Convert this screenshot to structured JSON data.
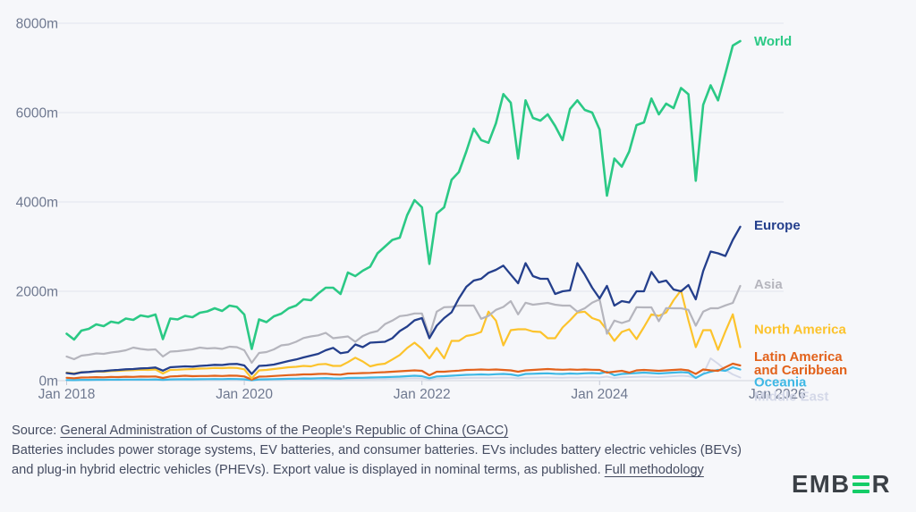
{
  "footer": {
    "source_prefix": "Source: ",
    "source_link": "General Administration of Customs of the People's Republic of China (GACC)",
    "note_text": "Batteries includes power storage systems, EV batteries, and consumer batteries. EVs includes battery electric vehicles (BEVs) and plug-in hybrid electric vehicles (PHEVs). Export value is displayed in nominal terms, as published. ",
    "methodology_link": "Full methodology"
  },
  "logo": {
    "left": "EMB",
    "right": "R",
    "brand_green": "#14cc67",
    "brand_dark": "#3b4046"
  },
  "chart_data": {
    "type": "line",
    "title": "",
    "xlabel": "",
    "ylabel": "",
    "y_tick_suffix": "m",
    "x_unit": "month",
    "x_start": "Jan 2018",
    "x_end": "Aug 2025",
    "ylim": [
      0,
      8000
    ],
    "grid": "horizontal",
    "legend_position": "right-of-line-ends",
    "yticks": [
      {
        "value": 0,
        "label": "0m"
      },
      {
        "value": 2000,
        "label": "2000m"
      },
      {
        "value": 4000,
        "label": "4000m"
      },
      {
        "value": 6000,
        "label": "6000m"
      },
      {
        "value": 8000,
        "label": "8000m"
      }
    ],
    "xticks": [
      {
        "index": 0,
        "label": "Jan 2018"
      },
      {
        "index": 24,
        "label": "Jan 2020"
      },
      {
        "index": 48,
        "label": "Jan 2022"
      },
      {
        "index": 72,
        "label": "Jan 2024"
      },
      {
        "index": 96,
        "label": "Jan 2026"
      }
    ],
    "series": [
      {
        "name": "middle-east",
        "label": [
          "Middle East"
        ],
        "color": "#d4d8e8",
        "label_dy": 21,
        "width": 2.0,
        "values": [
          8,
          7,
          9,
          9,
          10,
          10,
          11,
          11,
          12,
          12,
          13,
          13,
          14,
          10,
          14,
          15,
          16,
          15,
          16,
          17,
          18,
          17,
          19,
          18,
          16,
          6,
          15,
          16,
          18,
          20,
          22,
          23,
          26,
          25,
          28,
          29,
          26,
          25,
          30,
          31,
          33,
          35,
          37,
          39,
          42,
          45,
          48,
          52,
          48,
          28,
          46,
          48,
          52,
          56,
          60,
          62,
          65,
          63,
          66,
          68,
          64,
          52,
          66,
          68,
          70,
          72,
          68,
          66,
          70,
          68,
          72,
          74,
          70,
          90,
          60,
          75,
          80,
          85,
          90,
          85,
          80,
          90,
          100,
          110,
          100,
          60,
          150,
          500,
          380,
          240,
          140,
          70
        ]
      },
      {
        "name": "oceania",
        "label": [
          "Oceania"
        ],
        "color": "#3eb8e5",
        "label_dy": 14,
        "width": 2.2,
        "values": [
          15,
          12,
          18,
          18,
          20,
          20,
          22,
          22,
          25,
          24,
          26,
          25,
          28,
          18,
          28,
          30,
          32,
          30,
          33,
          34,
          36,
          34,
          38,
          36,
          30,
          10,
          28,
          30,
          34,
          38,
          42,
          44,
          50,
          48,
          55,
          58,
          50,
          48,
          60,
          62,
          65,
          70,
          75,
          78,
          85,
          90,
          100,
          110,
          100,
          55,
          95,
          100,
          110,
          120,
          130,
          135,
          140,
          135,
          145,
          150,
          140,
          110,
          150,
          155,
          160,
          165,
          155,
          150,
          160,
          155,
          165,
          170,
          160,
          200,
          120,
          150,
          160,
          170,
          180,
          170,
          160,
          170,
          180,
          190,
          180,
          60,
          150,
          200,
          240,
          220,
          300,
          250
        ]
      },
      {
        "name": "latin-america-and-caribbean",
        "label": [
          "Latin America",
          "and Caribbean"
        ],
        "color": "#e2621b",
        "label_dy": -10,
        "width": 2.2,
        "values": [
          65,
          55,
          70,
          72,
          78,
          75,
          82,
          80,
          88,
          85,
          92,
          90,
          95,
          60,
          95,
          100,
          110,
          100,
          105,
          105,
          110,
          105,
          112,
          110,
          95,
          25,
          90,
          95,
          105,
          115,
          125,
          130,
          140,
          140,
          150,
          155,
          140,
          135,
          160,
          165,
          170,
          175,
          185,
          190,
          200,
          210,
          220,
          230,
          220,
          120,
          200,
          200,
          215,
          225,
          240,
          245,
          250,
          245,
          250,
          240,
          230,
          200,
          230,
          240,
          250,
          260,
          250,
          245,
          250,
          245,
          250,
          245,
          240,
          180,
          200,
          220,
          180,
          230,
          240,
          230,
          220,
          230,
          240,
          250,
          230,
          150,
          250,
          230,
          220,
          300,
          380,
          340
        ]
      },
      {
        "name": "north-america",
        "label": [
          "North America"
        ],
        "color": "#fcc32c",
        "label_dy": -20,
        "width": 2.2,
        "values": [
          180,
          160,
          190,
          195,
          205,
          200,
          215,
          220,
          230,
          235,
          245,
          240,
          250,
          160,
          240,
          245,
          255,
          260,
          270,
          275,
          285,
          280,
          290,
          285,
          255,
          50,
          230,
          240,
          260,
          280,
          300,
          310,
          330,
          320,
          365,
          375,
          330,
          330,
          415,
          515,
          430,
          320,
          360,
          380,
          475,
          575,
          730,
          850,
          713,
          500,
          733,
          500,
          890,
          890,
          1000,
          1030,
          1090,
          1545,
          1345,
          790,
          1130,
          1150,
          1150,
          1100,
          1090,
          950,
          950,
          1190,
          1350,
          1525,
          1545,
          1400,
          1345,
          1130,
          890,
          1090,
          1150,
          930,
          1200,
          1485,
          1450,
          1525,
          1800,
          2020,
          1350,
          750,
          1130,
          1130,
          690,
          1100,
          1485,
          750
        ]
      },
      {
        "name": "asia",
        "label": [
          "Asia"
        ],
        "color": "#b5b5bd",
        "label_dy": -2,
        "width": 2.2,
        "values": [
          540,
          480,
          560,
          580,
          610,
          600,
          630,
          650,
          680,
          740,
          710,
          690,
          700,
          540,
          650,
          660,
          680,
          700,
          740,
          720,
          730,
          710,
          760,
          750,
          680,
          400,
          620,
          640,
          700,
          790,
          810,
          870,
          955,
          990,
          1015,
          1070,
          950,
          970,
          990,
          870,
          1000,
          1070,
          1110,
          1265,
          1345,
          1445,
          1465,
          1505,
          1505,
          1000,
          1545,
          1645,
          1650,
          1680,
          1680,
          1680,
          1385,
          1450,
          1585,
          1650,
          1780,
          1485,
          1745,
          1700,
          1720,
          1740,
          1700,
          1680,
          1680,
          1545,
          1620,
          1745,
          1820,
          1050,
          1345,
          1290,
          1345,
          1645,
          1640,
          1640,
          1330,
          1625,
          1620,
          1620,
          1585,
          1230,
          1545,
          1620,
          1620,
          1685,
          1740,
          2120
        ]
      },
      {
        "name": "europe",
        "label": [
          "Europe"
        ],
        "color": "#243f8c",
        "label_dy": -2,
        "width": 2.3,
        "values": [
          170,
          150,
          185,
          195,
          210,
          215,
          230,
          240,
          255,
          260,
          275,
          280,
          295,
          225,
          300,
          310,
          320,
          315,
          330,
          340,
          355,
          350,
          370,
          375,
          340,
          150,
          330,
          340,
          360,
          400,
          440,
          475,
          520,
          560,
          600,
          680,
          735,
          615,
          640,
          810,
          750,
          850,
          860,
          870,
          950,
          1110,
          1210,
          1350,
          1400,
          950,
          1230,
          1400,
          1530,
          1840,
          2100,
          2240,
          2280,
          2415,
          2480,
          2575,
          2375,
          2180,
          2630,
          2340,
          2280,
          2280,
          1940,
          2000,
          2020,
          2630,
          2375,
          2080,
          1840,
          2120,
          1680,
          1780,
          1750,
          2000,
          2000,
          2435,
          2200,
          2240,
          2040,
          2000,
          2140,
          1820,
          2455,
          2890,
          2850,
          2790,
          3150,
          3445
        ]
      },
      {
        "name": "world",
        "label": [
          "World"
        ],
        "color": "#2bc985",
        "label_dy": 0,
        "width": 2.6,
        "values": [
          1050,
          920,
          1120,
          1160,
          1260,
          1220,
          1320,
          1290,
          1390,
          1360,
          1460,
          1430,
          1480,
          930,
          1390,
          1370,
          1450,
          1420,
          1520,
          1550,
          1620,
          1560,
          1680,
          1650,
          1480,
          710,
          1370,
          1310,
          1440,
          1500,
          1620,
          1680,
          1820,
          1800,
          1950,
          2080,
          2080,
          1940,
          2420,
          2340,
          2460,
          2550,
          2850,
          3000,
          3150,
          3200,
          3700,
          4040,
          3880,
          2615,
          3740,
          3880,
          4495,
          4670,
          5130,
          5640,
          5385,
          5325,
          5760,
          6415,
          6220,
          4970,
          6275,
          5880,
          5820,
          5960,
          5700,
          5385,
          6080,
          6275,
          6060,
          6000,
          5620,
          4140,
          4970,
          4790,
          5130,
          5720,
          5780,
          6315,
          5960,
          6200,
          6100,
          6550,
          6410,
          4475,
          6175,
          6610,
          6275,
          6870,
          7500,
          7600
        ]
      }
    ]
  }
}
